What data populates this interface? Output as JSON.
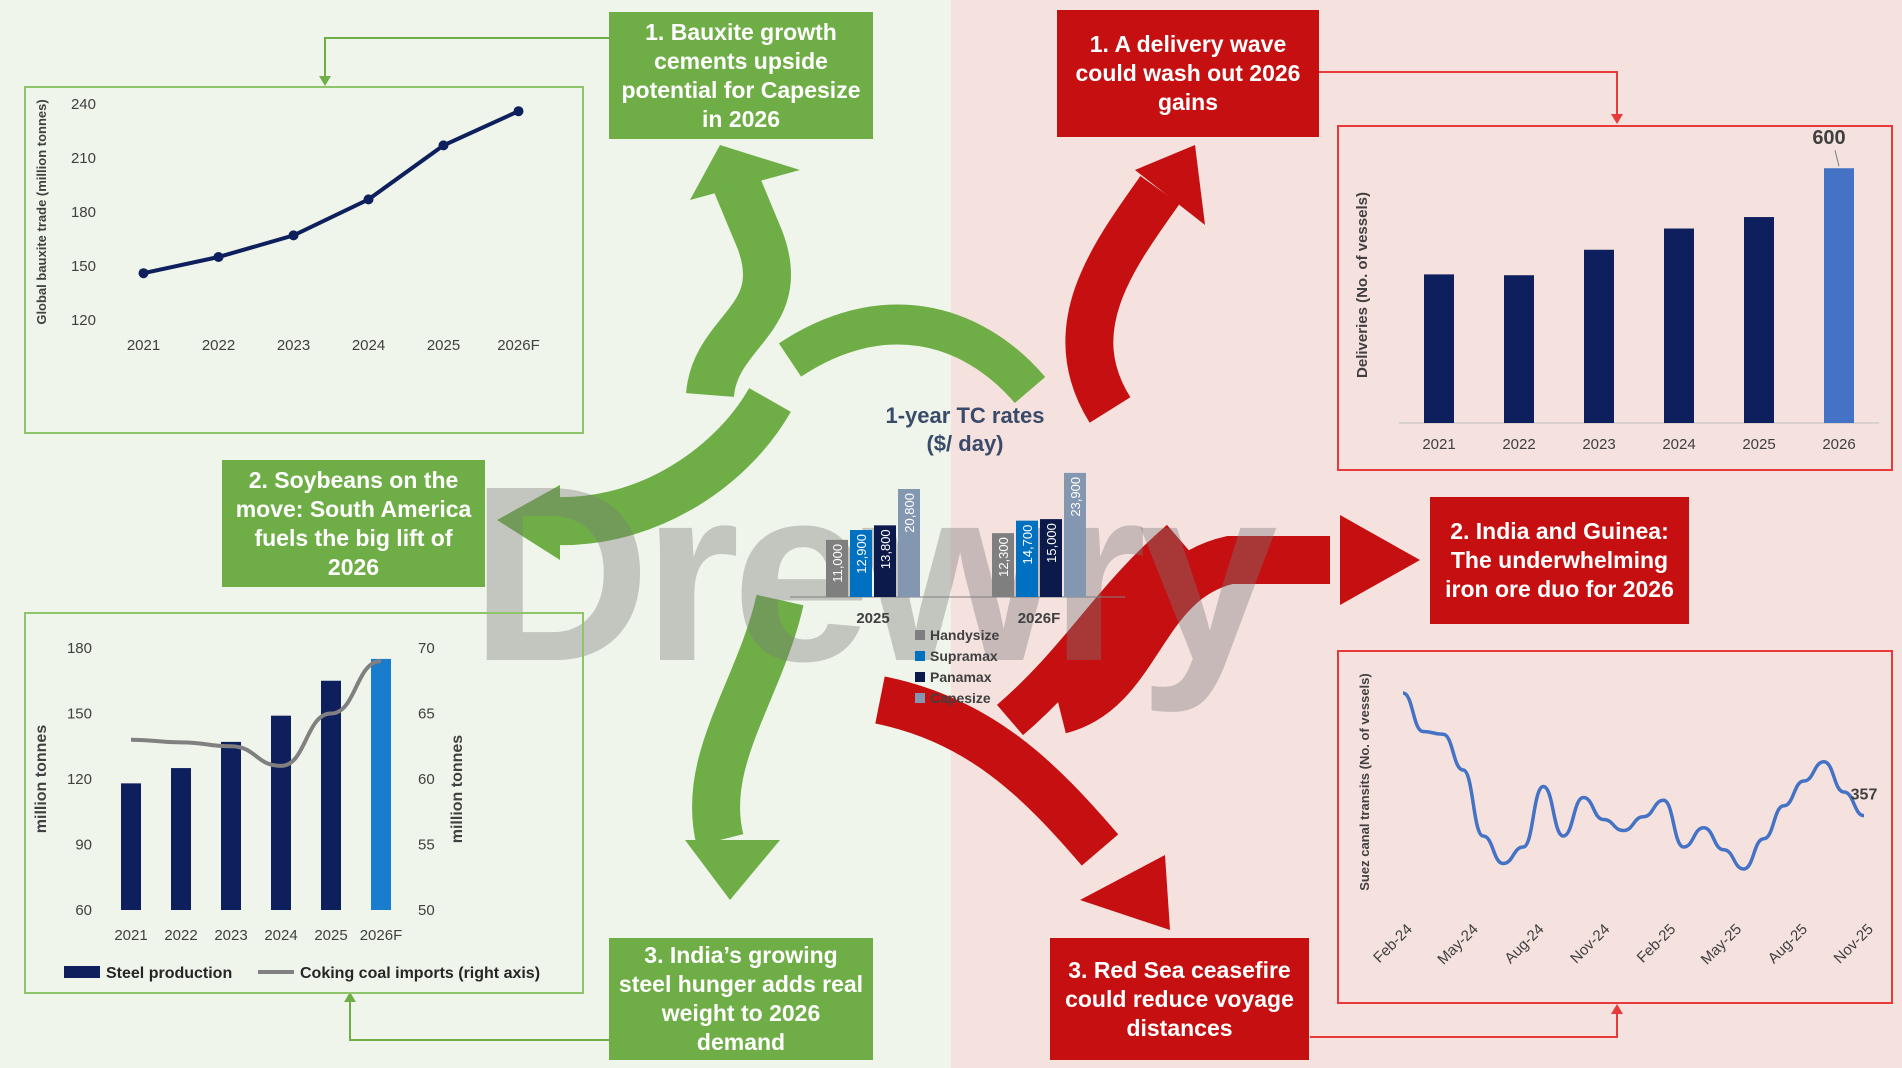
{
  "watermark": "Drewry",
  "colors": {
    "green": "#6fae46",
    "red": "#c50f10",
    "navy": "#0d1f5c",
    "blue_highlight": "#1a7ccc",
    "line_blue": "#4472c4",
    "handysize": "#7f7f7f",
    "supramax": "#0070c0",
    "panamax": "#0b1a4a",
    "capesize": "#8497b0"
  },
  "callouts": {
    "bauxite": "1. Bauxite growth cements upside potential for Capesize in 2026",
    "soybeans": "2. Soybeans on the move: South America fuels the big lift of 2026",
    "india_steel": "3. India’s growing steel hunger adds real weight to 2026 demand",
    "delivery": "1. A delivery wave could wash out 2026 gains",
    "iron_ore": "2. India and Guinea: The underwhelming iron ore duo for 2026",
    "red_sea": "3. Red Sea ceasefire could reduce voyage distances"
  },
  "chart_data": [
    {
      "id": "bauxite",
      "type": "line",
      "ylabel": "Global bauxite trade (million tonnes)",
      "x": [
        "2021",
        "2022",
        "2023",
        "2024",
        "2025",
        "2026F"
      ],
      "values": [
        146,
        155,
        167,
        187,
        217,
        236
      ],
      "ylim": [
        120,
        240
      ],
      "yticks": [
        120,
        150,
        180,
        210,
        240
      ]
    },
    {
      "id": "deliveries",
      "type": "bar",
      "ylabel": "Deliveries (No. of vessels)",
      "categories": [
        "2021",
        "2022",
        "2023",
        "2024",
        "2025",
        "2026"
      ],
      "values": [
        350,
        348,
        408,
        458,
        485,
        600
      ],
      "ylim": [
        0,
        650
      ],
      "data_labels": {
        "2026": "600"
      }
    },
    {
      "id": "tc_rates",
      "type": "bar",
      "title": "1-year TC rates ($/ day)",
      "categories": [
        "2025",
        "2026F"
      ],
      "series": [
        {
          "name": "Handysize",
          "values": [
            11000,
            12300
          ]
        },
        {
          "name": "Supramax",
          "values": [
            12900,
            14700
          ]
        },
        {
          "name": "Panamax",
          "values": [
            13800,
            15000
          ]
        },
        {
          "name": "Capesize",
          "values": [
            20800,
            23900
          ]
        }
      ],
      "value_labels": [
        [
          "11,000",
          "12,300"
        ],
        [
          "12,900",
          "14,700"
        ],
        [
          "13,800",
          "15,000"
        ],
        [
          "20,800",
          "23,900"
        ]
      ],
      "ylim": [
        0,
        26000
      ]
    },
    {
      "id": "steel_coal",
      "type": "bar",
      "categories": [
        "2021",
        "2022",
        "2023",
        "2024",
        "2025",
        "2026F"
      ],
      "ylabel": "million tonnes",
      "y2label": "million tonnes",
      "ylim": [
        60,
        180
      ],
      "y2lim": [
        50,
        70
      ],
      "yticks": [
        60,
        90,
        120,
        150,
        180
      ],
      "y2ticks": [
        50,
        55,
        60,
        65,
        70
      ],
      "series": [
        {
          "name": "Steel production",
          "type": "bar",
          "values": [
            118,
            125,
            137,
            149,
            165,
            175
          ]
        },
        {
          "name": "Coking coal imports (right axis)",
          "type": "line",
          "axis": "right",
          "values": [
            63,
            62.8,
            62.5,
            61,
            65,
            69
          ]
        }
      ]
    },
    {
      "id": "suez",
      "type": "line",
      "ylabel": "Suez canal transits (No. of vessels)",
      "xticks": [
        "Feb-24",
        "May-24",
        "Aug-24",
        "Nov-24",
        "Feb-25",
        "May-25",
        "Aug-25",
        "Nov-25"
      ],
      "values": [
        580,
        510,
        505,
        440,
        320,
        270,
        300,
        410,
        320,
        390,
        350,
        330,
        355,
        385,
        300,
        335,
        295,
        260,
        315,
        375,
        420,
        455,
        400,
        357
      ],
      "ylim": [
        200,
        600
      ],
      "data_labels": {
        "last": "357"
      }
    }
  ]
}
